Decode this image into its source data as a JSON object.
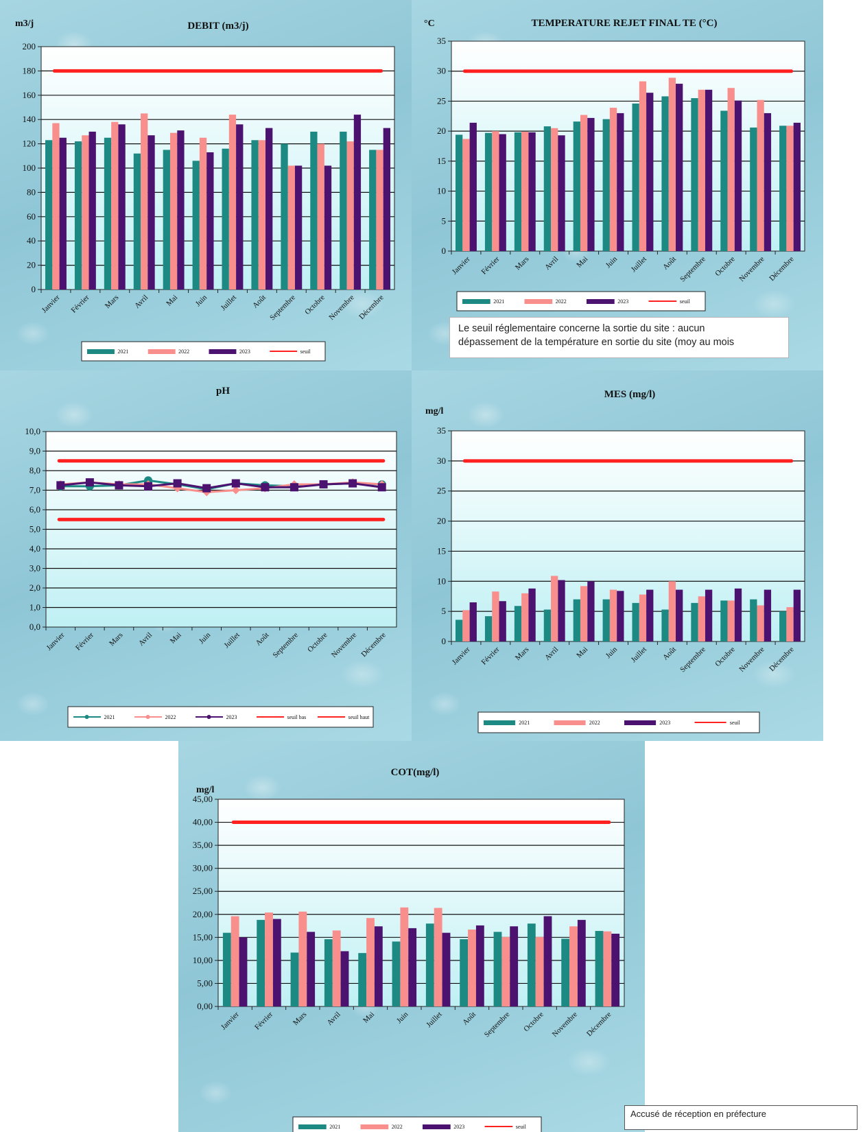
{
  "months": [
    "Janvier",
    "Février",
    "Mars",
    "Avril",
    "Mai",
    "Juin",
    "Juillet",
    "Août",
    "Septembre",
    "Octobre",
    "Novembre",
    "Décembre"
  ],
  "colors": {
    "2021": "#1c8a83",
    "2022": "#f98f8d",
    "2023": "#4b1270",
    "seuil": "#ff2020"
  },
  "temperature_note": {
    "line1": "Le seuil réglementaire concerne la sortie du site : aucun",
    "line2": "dépassement de la température en sortie du site (moy au mois"
  },
  "stamp_text": "Accusé de réception en préfecture",
  "chart_data": [
    {
      "id": "debit",
      "type": "bar",
      "title": "DEBIT (m3/j)",
      "unit_label": "m3/j",
      "ylim": [
        0,
        200
      ],
      "ystep": 20,
      "tick_decimals": 0,
      "series": [
        {
          "name": "2021",
          "values": [
            123,
            122,
            125,
            112,
            115,
            106,
            116,
            123,
            120,
            130,
            130,
            115
          ]
        },
        {
          "name": "2022",
          "values": [
            137,
            127,
            138,
            145,
            129,
            125,
            144,
            123,
            102,
            120,
            122,
            115
          ]
        },
        {
          "name": "2023",
          "values": [
            125,
            130,
            136,
            127,
            131,
            113,
            136,
            133,
            102,
            102,
            144,
            133
          ]
        }
      ],
      "threshold": [
        {
          "name": "seuil",
          "value": 180
        }
      ],
      "legend": [
        "2021",
        "2022",
        "2023",
        "seuil"
      ]
    },
    {
      "id": "temperature",
      "type": "bar",
      "title": "TEMPERATURE REJET FINAL TE (°C)",
      "unit_label": "°C",
      "ylim": [
        0,
        35
      ],
      "ystep": 5,
      "tick_decimals": 0,
      "series": [
        {
          "name": "2021",
          "values": [
            19.4,
            19.7,
            19.8,
            20.8,
            21.6,
            22.0,
            24.6,
            25.8,
            25.5,
            23.4,
            20.6,
            20.9
          ]
        },
        {
          "name": "2022",
          "values": [
            18.7,
            20.0,
            19.9,
            20.5,
            22.7,
            23.9,
            28.3,
            28.9,
            26.9,
            27.2,
            25.2,
            20.9
          ]
        },
        {
          "name": "2023",
          "values": [
            21.4,
            19.5,
            19.8,
            19.3,
            22.2,
            23.0,
            26.4,
            27.9,
            26.9,
            25.1,
            23.0,
            21.4
          ]
        }
      ],
      "threshold": [
        {
          "name": "seuil",
          "value": 30
        }
      ],
      "legend": [
        "2021",
        "2022",
        "2023",
        "seuil"
      ]
    },
    {
      "id": "ph",
      "type": "line",
      "title": "pH",
      "unit_label": "",
      "ylim": [
        0,
        10
      ],
      "ystep": 1,
      "tick_decimals": 1,
      "series": [
        {
          "name": "2021",
          "values": [
            7.2,
            7.2,
            7.25,
            7.5,
            7.3,
            7.05,
            7.35,
            7.25,
            7.2,
            7.3,
            7.35,
            7.3
          ]
        },
        {
          "name": "2022",
          "values": [
            7.3,
            7.4,
            7.3,
            7.3,
            7.1,
            6.9,
            7.0,
            7.1,
            7.3,
            7.3,
            7.4,
            7.3
          ]
        },
        {
          "name": "2023",
          "values": [
            7.25,
            7.4,
            7.25,
            7.2,
            7.35,
            7.1,
            7.35,
            7.15,
            7.15,
            7.3,
            7.35,
            7.15
          ]
        }
      ],
      "threshold": [
        {
          "name": "seuil bas",
          "value": 5.5
        },
        {
          "name": "seuil haut",
          "value": 8.5
        }
      ],
      "legend": [
        "2021",
        "2022",
        "2023",
        "seuil bas",
        "seuil haut"
      ]
    },
    {
      "id": "mes",
      "type": "bar",
      "title": "MES (mg/l)",
      "unit_label": "mg/l",
      "ylim": [
        0,
        35
      ],
      "ystep": 5,
      "tick_decimals": 0,
      "series": [
        {
          "name": "2021",
          "values": [
            3.6,
            4.2,
            5.9,
            5.3,
            7.0,
            7.0,
            6.4,
            5.3,
            6.4,
            6.8,
            7.0,
            5.0
          ]
        },
        {
          "name": "2022",
          "values": [
            5.2,
            8.3,
            8.0,
            10.9,
            9.2,
            8.6,
            7.8,
            10.0,
            7.5,
            6.8,
            6.0,
            5.7
          ]
        },
        {
          "name": "2023",
          "values": [
            6.5,
            6.7,
            8.8,
            10.2,
            10.0,
            8.4,
            8.6,
            8.6,
            8.6,
            8.8,
            8.6,
            8.6
          ]
        }
      ],
      "threshold": [
        {
          "name": "seuil",
          "value": 30
        }
      ],
      "legend": [
        "2021",
        "2022",
        "2023",
        "seuil"
      ]
    },
    {
      "id": "cot",
      "type": "bar",
      "title": "COT(mg/l)",
      "unit_label": "mg/l",
      "ylim": [
        0,
        45
      ],
      "ystep": 5,
      "tick_decimals": 2,
      "series": [
        {
          "name": "2021",
          "values": [
            16.0,
            18.8,
            11.7,
            14.6,
            11.6,
            14.1,
            18.0,
            14.6,
            16.2,
            18.0,
            14.7,
            16.4
          ]
        },
        {
          "name": "2022",
          "values": [
            19.6,
            20.4,
            20.6,
            16.5,
            19.2,
            21.5,
            21.4,
            16.7,
            15.1,
            15.1,
            17.4,
            16.3
          ]
        },
        {
          "name": "2023",
          "values": [
            15.0,
            19.0,
            16.2,
            12.0,
            17.4,
            17.0,
            16.0,
            17.6,
            17.4,
            19.6,
            18.8,
            15.8
          ]
        }
      ],
      "threshold": [
        {
          "name": "seuil",
          "value": 40
        }
      ],
      "legend": [
        "2021",
        "2022",
        "2023",
        "seuil"
      ]
    }
  ]
}
